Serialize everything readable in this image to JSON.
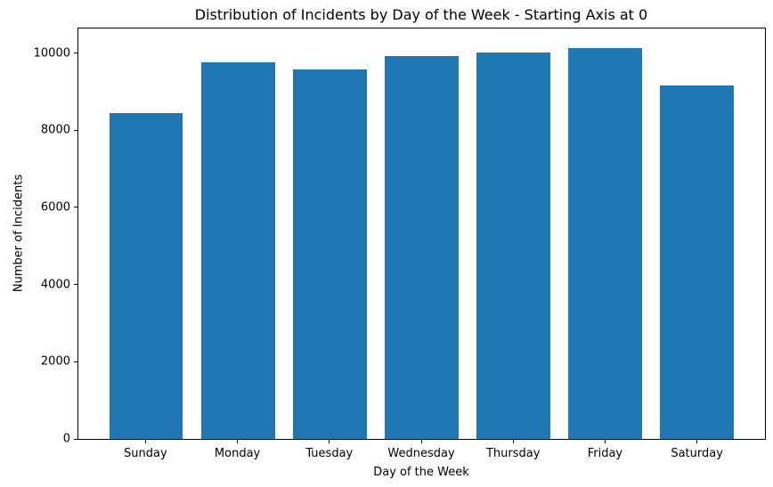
{
  "chart_data": {
    "type": "bar",
    "title": "Distribution of Incidents by Day of the Week - Starting Axis at 0",
    "xlabel": "Day of the Week",
    "ylabel": "Number of Incidents",
    "categories": [
      "Sunday",
      "Monday",
      "Tuesday",
      "Wednesday",
      "Thursday",
      "Friday",
      "Saturday"
    ],
    "values": [
      8470,
      9780,
      9600,
      9940,
      10040,
      10150,
      9190
    ],
    "yticks": [
      0,
      2000,
      4000,
      6000,
      8000,
      10000
    ],
    "ylim": [
      0,
      10660
    ],
    "bar_color": "#1f77b4",
    "axis_color": "#000000",
    "background_color": "#ffffff",
    "grid": false,
    "legend": "none"
  }
}
